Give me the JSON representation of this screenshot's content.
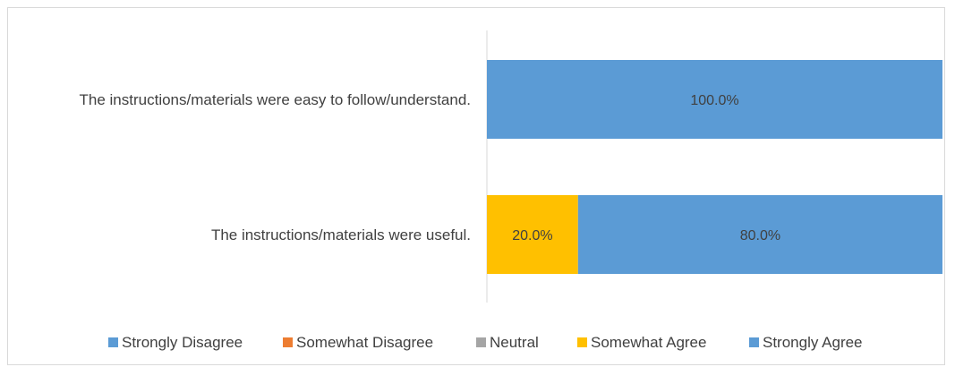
{
  "chart_data": {
    "type": "bar",
    "orientation": "horizontal",
    "stacked": "percent",
    "categories": [
      "The instructions/materials were easy to follow/understand.",
      "The instructions/materials were useful."
    ],
    "series": [
      {
        "name": "Strongly Disagree",
        "color": "#5b9bd5",
        "values": [
          0,
          0
        ]
      },
      {
        "name": "Somewhat Disagree",
        "color": "#ed7d31",
        "values": [
          0,
          0
        ]
      },
      {
        "name": "Neutral",
        "color": "#a5a5a5",
        "values": [
          0,
          0
        ]
      },
      {
        "name": "Somewhat Agree",
        "color": "#ffc000",
        "values": [
          0,
          20.0
        ]
      },
      {
        "name": "Strongly Agree",
        "color": "#5b9bd5",
        "values": [
          100.0,
          80.0
        ]
      }
    ],
    "data_labels": [
      [
        "100.0%"
      ],
      [
        "20.0%",
        "80.0%"
      ]
    ],
    "xlim": [
      0,
      100
    ],
    "grid": false,
    "legend_position": "bottom"
  }
}
